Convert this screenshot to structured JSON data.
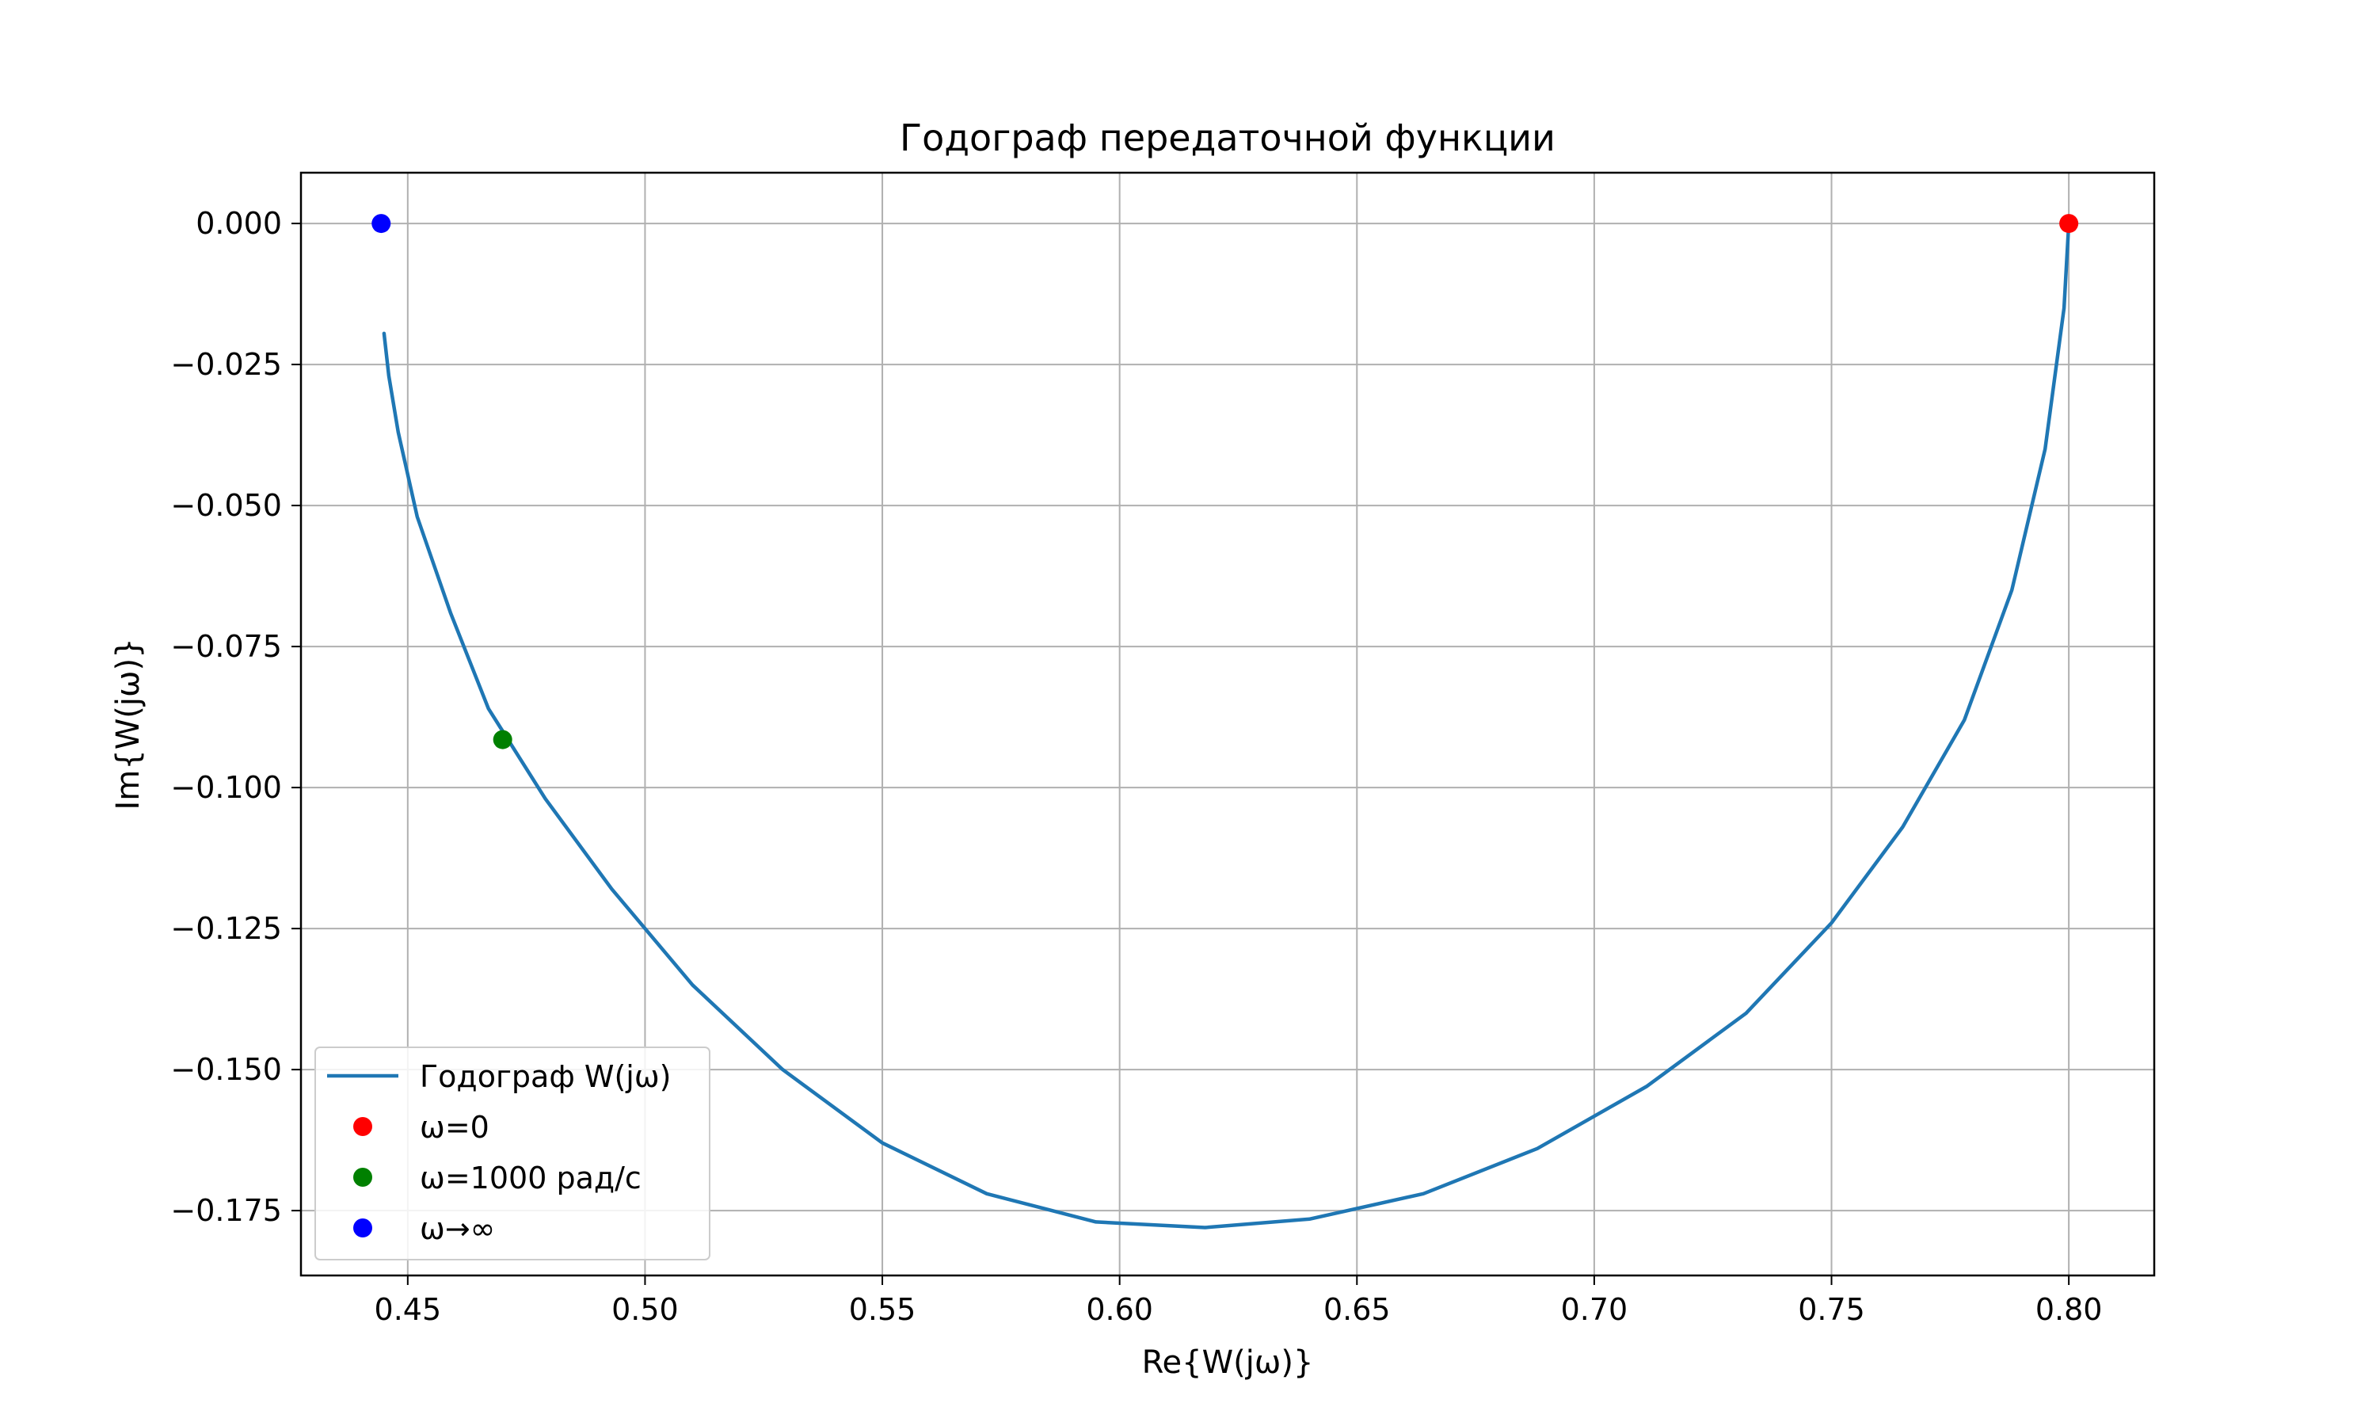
{
  "chart_data": {
    "type": "line",
    "title": "Годограф передаточной функции",
    "xlabel": "Re{W(jω)}",
    "ylabel": "Im{W(jω)}",
    "xlim": [
      0.4275,
      0.818
    ],
    "ylim": [
      -0.1865,
      0.009
    ],
    "xticks": [
      0.45,
      0.5,
      0.55,
      0.6,
      0.65,
      0.7,
      0.75,
      0.8
    ],
    "xtick_labels": [
      "0.45",
      "0.50",
      "0.55",
      "0.60",
      "0.65",
      "0.70",
      "0.75",
      "0.80"
    ],
    "yticks": [
      0.0,
      -0.025,
      -0.05,
      -0.075,
      -0.1,
      -0.125,
      -0.15,
      -0.175
    ],
    "ytick_labels": [
      "0.000",
      "−0.025",
      "−0.050",
      "−0.075",
      "−0.100",
      "−0.125",
      "−0.150",
      "−0.175"
    ],
    "grid": true,
    "legend_position": "lower-left",
    "series": [
      {
        "name": "Годограф W(jω)",
        "kind": "line",
        "color": "#1f77b4",
        "x": [
          0.8,
          0.799,
          0.795,
          0.788,
          0.778,
          0.765,
          0.75,
          0.732,
          0.711,
          0.688,
          0.664,
          0.64,
          0.618,
          0.595,
          0.572,
          0.55,
          0.529,
          0.51,
          0.493,
          0.479,
          0.467,
          0.459,
          0.452,
          0.448,
          0.446,
          0.445
        ],
        "y": [
          0.0,
          -0.015,
          -0.04,
          -0.065,
          -0.088,
          -0.107,
          -0.124,
          -0.14,
          -0.153,
          -0.164,
          -0.172,
          -0.1765,
          -0.178,
          -0.177,
          -0.172,
          -0.163,
          -0.15,
          -0.135,
          -0.118,
          -0.102,
          -0.086,
          -0.069,
          -0.052,
          -0.037,
          -0.027,
          -0.0195
        ]
      },
      {
        "name": "ω=0",
        "kind": "marker",
        "color": "#ff0000",
        "x": [
          0.8
        ],
        "y": [
          0.0
        ]
      },
      {
        "name": "ω=1000 рад/с",
        "kind": "marker",
        "color": "#008000",
        "x": [
          0.47
        ],
        "y": [
          -0.0915
        ]
      },
      {
        "name": "ω→∞",
        "kind": "marker",
        "color": "#0000ff",
        "x": [
          0.4444
        ],
        "y": [
          0.0
        ]
      }
    ]
  }
}
